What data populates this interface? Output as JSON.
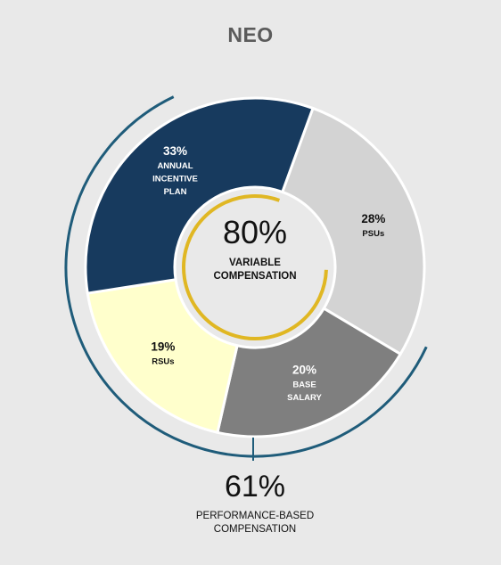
{
  "title": "NEO",
  "colors": {
    "background": "#e9e9e9",
    "psus": "#d3d3d3",
    "base_salary": "#7f7f7f",
    "rsus": "#ffffcc",
    "annual_incentive": "#173a5e",
    "variable_arc": "#e0b723",
    "performance_arc": "#1f5c7a"
  },
  "center": {
    "value": "80%",
    "label_line1": "VARIABLE",
    "label_line2": "COMPENSATION",
    "arc_fraction": 0.8
  },
  "performance": {
    "value": "61%",
    "label_line1": "PERFORMANCE-BASED",
    "label_line2": "COMPENSATION",
    "arc_fraction": 0.61
  },
  "chart_data": {
    "type": "pie",
    "title": "NEO",
    "slices": [
      {
        "name": "PSUs",
        "value": 28,
        "pct_label": "28%",
        "label_lines": [
          "PSUs"
        ],
        "color": "#d3d3d3",
        "text_color": "#111111"
      },
      {
        "name": "BASE SALARY",
        "value": 20,
        "pct_label": "20%",
        "label_lines": [
          "BASE",
          "SALARY"
        ],
        "color": "#7f7f7f",
        "text_color": "#ffffff"
      },
      {
        "name": "RSUs",
        "value": 19,
        "pct_label": "19%",
        "label_lines": [
          "RSUs"
        ],
        "color": "#ffffcc",
        "text_color": "#111111"
      },
      {
        "name": "ANNUAL INCENTIVE PLAN",
        "value": 33,
        "pct_label": "33%",
        "label_lines": [
          "ANNUAL",
          "INCENTIVE",
          "PLAN"
        ],
        "color": "#173a5e",
        "text_color": "#ffffff"
      }
    ]
  }
}
